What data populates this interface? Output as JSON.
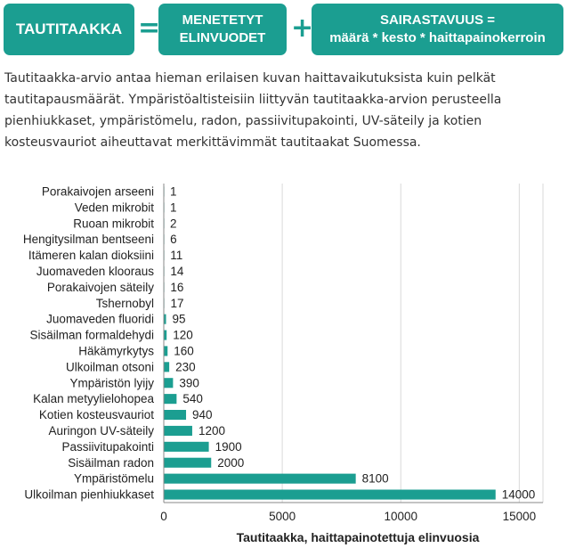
{
  "formula": {
    "box1": "TAUTITAAKKA",
    "equals": "=",
    "box2_line1": "MENETETYT",
    "box2_line2": "ELINVUODET",
    "plus": "+",
    "box3_line1": "SAIRASTAVUUS =",
    "box3_line2": "määrä * kesto * haittapainokerroin"
  },
  "intro_text": "Tautitaakka-arvio antaa hieman erilaisen kuvan haittavaikutuksista kuin pelkät tautitapausmäärät. Ympäristöaltisteisiin liittyvän tautitaakka-arvion perusteella pienhiukkaset, ympäristömelu, radon, passiivitupakointi, UV-säteily ja kotien kosteusvauriot aiheuttavat merkittävimmät tautitaakat Suomessa.",
  "colors": {
    "accent": "#1b9e91",
    "bar": "#1b9e91",
    "grid": "#d9d9d9"
  },
  "chart_data": {
    "type": "bar",
    "orientation": "horizontal",
    "categories": [
      "Porakaivojen arseeni",
      "Veden mikrobit",
      "Ruoan mikrobit",
      "Hengitysilman bentseeni",
      "Itämeren kalan dioksiini",
      "Juomaveden klooraus",
      "Porakaivojen säteily",
      "Tshernobyl",
      "Juomaveden fluoridi",
      "Sisäilman formaldehydi",
      "Häkämyrkytys",
      "Ulkoilman otsoni",
      "Ympäristön lyijy",
      "Kalan metyylielohopea",
      "Kotien kosteusvauriot",
      "Auringon UV-säteily",
      "Passiivitupakointi",
      "Sisäilman radon",
      "Ympäristömelu",
      "Ulkoilman pienhiukkaset"
    ],
    "values": [
      1,
      1,
      2,
      6,
      11,
      14,
      16,
      17,
      95,
      120,
      160,
      230,
      390,
      540,
      940,
      1200,
      1900,
      2000,
      8100,
      14000
    ],
    "xlabel": "Tautitaakka, haittapainotettuja elinvuosia",
    "ylabel": "",
    "xlim": [
      0,
      16000
    ],
    "xticks": [
      0,
      5000,
      10000,
      15000
    ],
    "grid": true
  }
}
